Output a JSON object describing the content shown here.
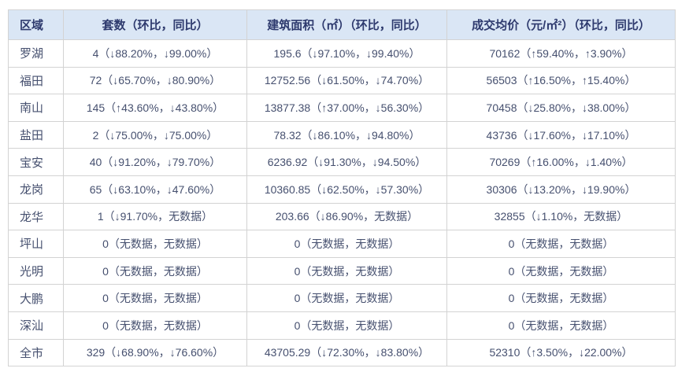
{
  "colors": {
    "header_bg": "#dae6f5",
    "header_text": "#2e3a6e",
    "body_text": "#46506f",
    "border": "#d3d3d3",
    "page_bg": "#ffffff"
  },
  "chart_data": {
    "type": "table",
    "title": "",
    "columns": [
      "区域",
      "套数（环比，同比）",
      "建筑面积（㎡）（环比，同比）",
      "成交均价（元/㎡²）（环比，同比）"
    ],
    "rows": [
      [
        "罗湖",
        "4（↓88.20%，↓99.00%）",
        "195.6（↓97.10%，↓99.40%）",
        "70162（↑59.40%，↑3.90%）"
      ],
      [
        "福田",
        "72（↓65.70%，↓80.90%）",
        "12752.56（↓61.50%，↓74.70%）",
        "56503（↑16.50%，↑15.40%）"
      ],
      [
        "南山",
        "145（↑43.60%，↓43.80%）",
        "13877.38（↑37.00%，↓56.30%）",
        "70458（↓25.80%，↓38.00%）"
      ],
      [
        "盐田",
        "2（↓75.00%，↓75.00%）",
        "78.32（↓86.10%，↓94.80%）",
        "43736（↓17.60%，↓17.10%）"
      ],
      [
        "宝安",
        "40（↓91.20%，↓79.70%）",
        "6236.92（↓91.30%，↓94.50%）",
        "70269（↑16.00%，↓1.40%）"
      ],
      [
        "龙岗",
        "65（↓63.10%，↓47.60%）",
        "10360.85（↓62.50%，↓57.30%）",
        "30306（↓13.20%，↓19.90%）"
      ],
      [
        "龙华",
        "1（↓91.70%，无数据）",
        "203.66（↓86.90%，无数据）",
        "32855（↓1.10%，无数据）"
      ],
      [
        "坪山",
        "0（无数据，无数据）",
        "0（无数据，无数据）",
        "0（无数据，无数据）"
      ],
      [
        "光明",
        "0（无数据，无数据）",
        "0（无数据，无数据）",
        "0（无数据，无数据）"
      ],
      [
        "大鹏",
        "0（无数据，无数据）",
        "0（无数据，无数据）",
        "0（无数据，无数据）"
      ],
      [
        "深汕",
        "0（无数据，无数据）",
        "0（无数据，无数据）",
        "0（无数据，无数据）"
      ],
      [
        "全市",
        "329（↓68.90%，↓76.60%）",
        "43705.29（↓72.30%，↓83.80%）",
        "52310（↑3.50%，↓22.00%）"
      ]
    ]
  }
}
